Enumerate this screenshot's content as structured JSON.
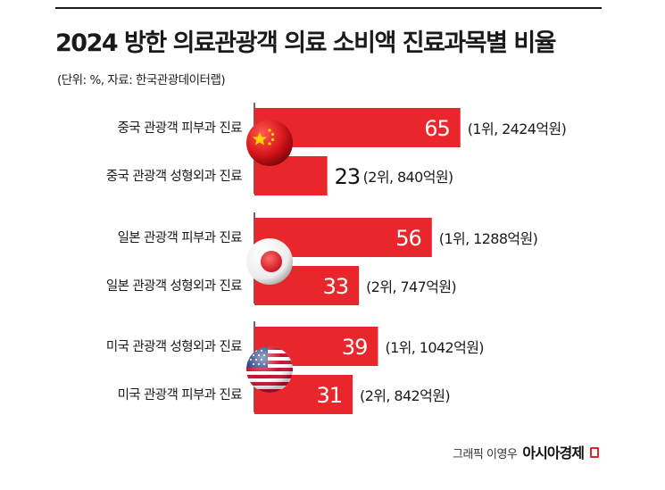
{
  "title": "2024 방한 의료관광객 의료 소비액 진료과목별 비율",
  "subtitle": "(단위: %, 자료: 한국관광데이터랩)",
  "credit": {
    "byline": "그래픽 이영우",
    "brand": "아시아경제"
  },
  "colors": {
    "bar": "#e8262b",
    "divider": "#1a1a1a"
  },
  "chart_data": {
    "type": "bar",
    "orientation": "horizontal",
    "unit": "%",
    "xlim": [
      0,
      100
    ],
    "grid": false,
    "groups": [
      {
        "country": "China",
        "flag": "china-flag-icon",
        "bars": [
          {
            "label": "중국 관광객 피부과 진료",
            "value": 65,
            "note": "(1위, 2424억원)"
          },
          {
            "label": "중국 관광객 성형외과 진료",
            "value": 23,
            "note": "(2위, 840억원)"
          }
        ]
      },
      {
        "country": "Japan",
        "flag": "japan-flag-icon",
        "bars": [
          {
            "label": "일본 관광객 피부과 진료",
            "value": 56,
            "note": "(1위, 1288억원)"
          },
          {
            "label": "일본 관광객 성형외과 진료",
            "value": 33,
            "note": "(2위, 747억원)"
          }
        ]
      },
      {
        "country": "USA",
        "flag": "usa-flag-icon",
        "bars": [
          {
            "label": "미국 관광객 성형외과 진료",
            "value": 39,
            "note": "(1위, 1042억원)"
          },
          {
            "label": "미국 관광객 피부과 진료",
            "value": 31,
            "note": "(2위, 842억원)"
          }
        ]
      }
    ]
  }
}
